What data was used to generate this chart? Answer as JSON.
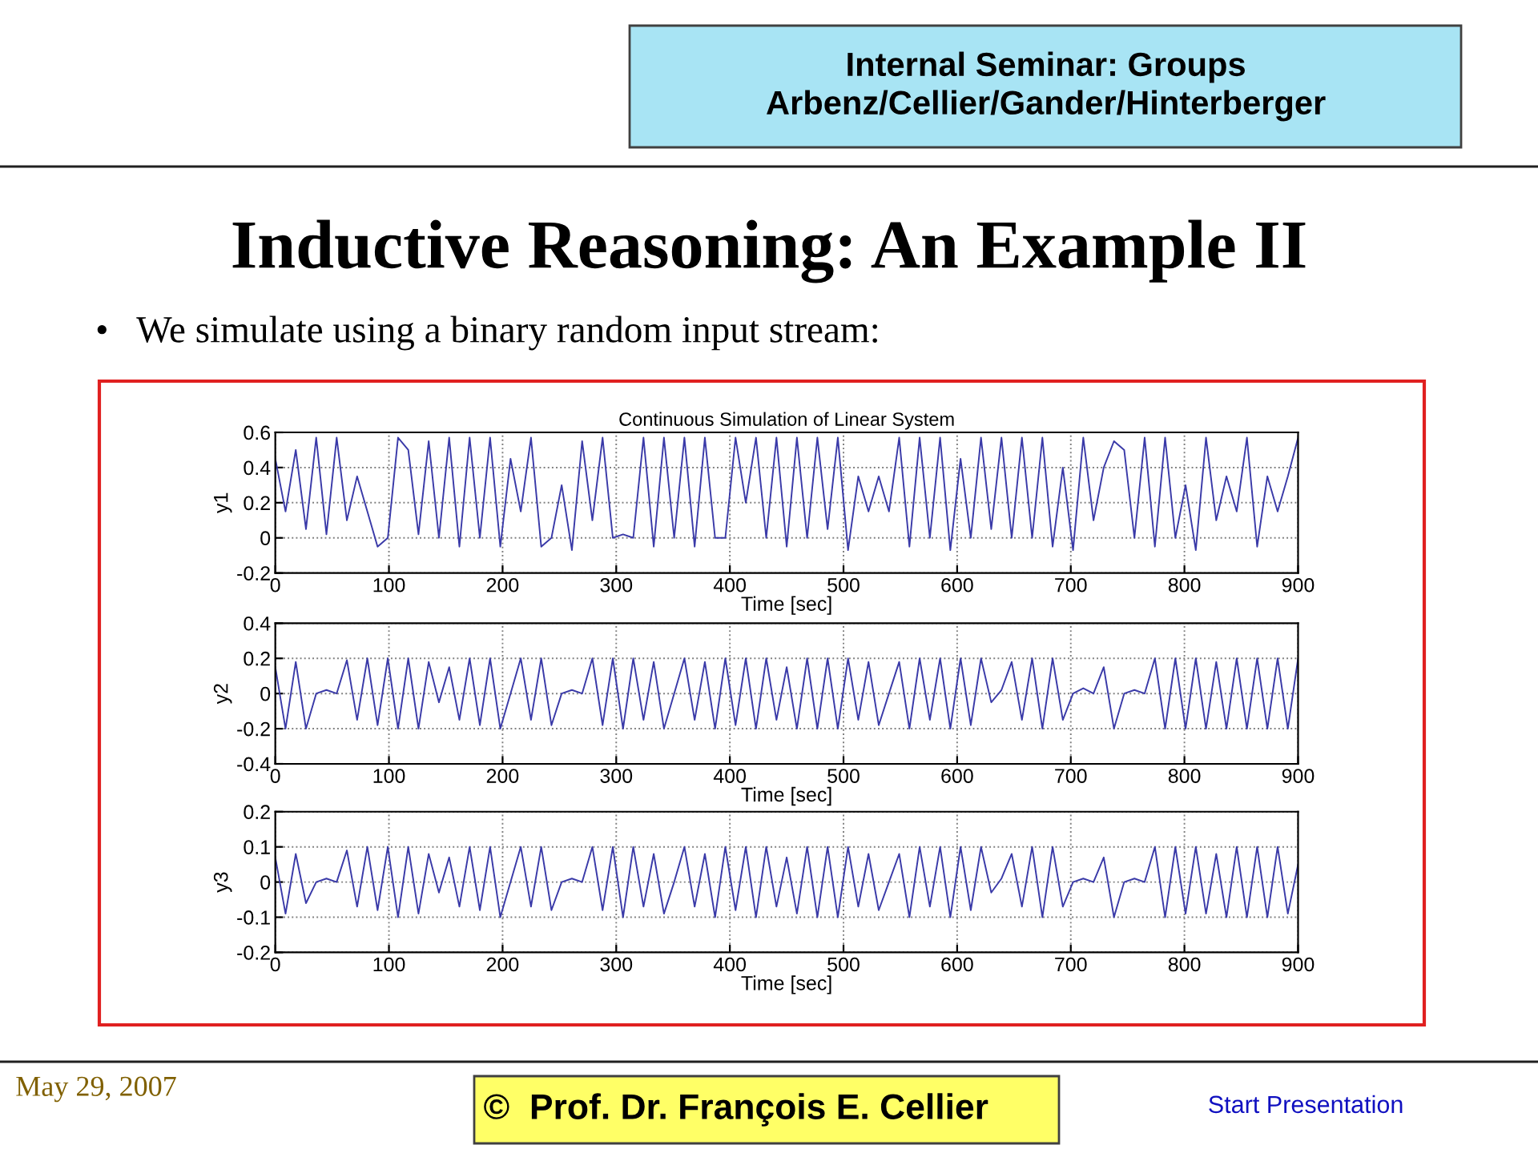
{
  "chart_data": [
    {
      "type": "line",
      "title": "Continuous Simulation of Linear System",
      "xlabel": "Time [sec]",
      "ylabel": "y1",
      "annotations": [
        "Internal Seminar: Groups\nArbenz/Cellier/Gander/Hinterberger",
        "Inductive Reasoning: An Example II",
        "•   We simulate using a binary random input stream:",
        "May 29, 2007",
        "©  Prof. Dr. François E. Cellier",
        "Start Presentation"
      ],
      "x": [
        0,
        9,
        18,
        27,
        36,
        45,
        54,
        63,
        72,
        81,
        90,
        99,
        108,
        117,
        126,
        135,
        144,
        153,
        162,
        171,
        180,
        189,
        198,
        207,
        216,
        225,
        234,
        243,
        252,
        261,
        270,
        279,
        288,
        297,
        306,
        315,
        324,
        333,
        342,
        351,
        360,
        369,
        378,
        387,
        396,
        405,
        414,
        423,
        432,
        441,
        450,
        459,
        468,
        477,
        486,
        495,
        504,
        513,
        522,
        531,
        540,
        549,
        558,
        567,
        576,
        585,
        594,
        603,
        612,
        621,
        630,
        639,
        648,
        657,
        666,
        675,
        684,
        693,
        702,
        711,
        720,
        729,
        738,
        747,
        756,
        765,
        774,
        783,
        792,
        801,
        810,
        819,
        828,
        837,
        846,
        855,
        864,
        873,
        882,
        891,
        900
      ],
      "series": [
        {
          "color": "#3a3aa8",
          "values": [
            0.45,
            0.15,
            0.5,
            0.05,
            0.57,
            0.02,
            0.57,
            0.1,
            0.35,
            0.15,
            -0.05,
            0.0,
            0.57,
            0.5,
            0.02,
            0.55,
            0.0,
            0.57,
            -0.05,
            0.57,
            0.0,
            0.57,
            -0.05,
            0.45,
            0.15,
            0.57,
            -0.05,
            0.0,
            0.3,
            -0.07,
            0.55,
            0.1,
            0.57,
            0.0,
            0.02,
            0.0,
            0.57,
            -0.05,
            0.57,
            0.0,
            0.57,
            -0.05,
            0.57,
            0.0,
            0.0,
            0.57,
            0.2,
            0.57,
            0.0,
            0.57,
            -0.05,
            0.57,
            0.0,
            0.57,
            0.05,
            0.57,
            -0.07,
            0.35,
            0.15,
            0.35,
            0.15,
            0.57,
            -0.05,
            0.57,
            0.0,
            0.57,
            -0.07,
            0.45,
            0.0,
            0.57,
            0.05,
            0.57,
            0.0,
            0.57,
            0.0,
            0.57,
            -0.05,
            0.4,
            -0.07,
            0.57,
            0.1,
            0.4,
            0.55,
            0.5,
            0.0,
            0.57,
            -0.05,
            0.57,
            0.0,
            0.3,
            -0.07,
            0.57,
            0.1,
            0.35,
            0.15,
            0.57,
            -0.05,
            0.35,
            0.15,
            0.35,
            0.57
          ]
        }
      ],
      "xlim": [
        0,
        900
      ],
      "ylim": [
        -0.2,
        0.6
      ],
      "xticks": [
        0,
        100,
        200,
        300,
        400,
        500,
        600,
        700,
        800,
        900
      ],
      "yticks": [
        -0.2,
        0,
        0.2,
        0.4,
        0.6
      ],
      "grid": true
    },
    {
      "type": "line",
      "xlabel": "Time [sec]",
      "ylabel": "y2",
      "x": [
        0,
        9,
        18,
        27,
        36,
        45,
        54,
        63,
        72,
        81,
        90,
        99,
        108,
        117,
        126,
        135,
        144,
        153,
        162,
        171,
        180,
        189,
        198,
        207,
        216,
        225,
        234,
        243,
        252,
        261,
        270,
        279,
        288,
        297,
        306,
        315,
        324,
        333,
        342,
        351,
        360,
        369,
        378,
        387,
        396,
        405,
        414,
        423,
        432,
        441,
        450,
        459,
        468,
        477,
        486,
        495,
        504,
        513,
        522,
        531,
        540,
        549,
        558,
        567,
        576,
        585,
        594,
        603,
        612,
        621,
        630,
        639,
        648,
        657,
        666,
        675,
        684,
        693,
        702,
        711,
        720,
        729,
        738,
        747,
        756,
        765,
        774,
        783,
        792,
        801,
        810,
        819,
        828,
        837,
        846,
        855,
        864,
        873,
        882,
        891,
        900
      ],
      "series": [
        {
          "color": "#3a3aa8",
          "values": [
            0.15,
            -0.2,
            0.18,
            -0.2,
            0.0,
            0.02,
            0.0,
            0.19,
            -0.15,
            0.2,
            -0.18,
            0.2,
            -0.2,
            0.2,
            -0.2,
            0.18,
            -0.05,
            0.15,
            -0.15,
            0.2,
            -0.18,
            0.2,
            -0.2,
            0.0,
            0.2,
            -0.15,
            0.2,
            -0.18,
            0.0,
            0.02,
            0.0,
            0.2,
            -0.18,
            0.2,
            -0.2,
            0.2,
            -0.15,
            0.18,
            -0.2,
            0.0,
            0.2,
            -0.15,
            0.18,
            -0.2,
            0.2,
            -0.18,
            0.2,
            -0.2,
            0.2,
            -0.15,
            0.15,
            -0.2,
            0.2,
            -0.2,
            0.2,
            -0.2,
            0.2,
            -0.15,
            0.18,
            -0.18,
            0.0,
            0.18,
            -0.2,
            0.2,
            -0.15,
            0.2,
            -0.2,
            0.2,
            -0.18,
            0.2,
            -0.05,
            0.02,
            0.18,
            -0.15,
            0.2,
            -0.2,
            0.2,
            -0.15,
            0.0,
            0.03,
            0.0,
            0.15,
            -0.2,
            0.0,
            0.02,
            0.0,
            0.2,
            -0.2,
            0.2,
            -0.2,
            0.2,
            -0.2,
            0.18,
            -0.2,
            0.2,
            -0.2,
            0.2,
            -0.2,
            0.2,
            -0.2,
            0.2
          ]
        }
      ],
      "xlim": [
        0,
        900
      ],
      "ylim": [
        -0.4,
        0.4
      ],
      "xticks": [
        0,
        100,
        200,
        300,
        400,
        500,
        600,
        700,
        800,
        900
      ],
      "yticks": [
        -0.4,
        -0.2,
        0,
        0.2,
        0.4
      ],
      "grid": true
    },
    {
      "type": "line",
      "xlabel": "Time [sec]",
      "ylabel": "y3",
      "x": [
        0,
        9,
        18,
        27,
        36,
        45,
        54,
        63,
        72,
        81,
        90,
        99,
        108,
        117,
        126,
        135,
        144,
        153,
        162,
        171,
        180,
        189,
        198,
        207,
        216,
        225,
        234,
        243,
        252,
        261,
        270,
        279,
        288,
        297,
        306,
        315,
        324,
        333,
        342,
        351,
        360,
        369,
        378,
        387,
        396,
        405,
        414,
        423,
        432,
        441,
        450,
        459,
        468,
        477,
        486,
        495,
        504,
        513,
        522,
        531,
        540,
        549,
        558,
        567,
        576,
        585,
        594,
        603,
        612,
        621,
        630,
        639,
        648,
        657,
        666,
        675,
        684,
        693,
        702,
        711,
        720,
        729,
        738,
        747,
        756,
        765,
        774,
        783,
        792,
        801,
        810,
        819,
        828,
        837,
        846,
        855,
        864,
        873,
        882,
        891,
        900
      ],
      "series": [
        {
          "color": "#3a3aa8",
          "values": [
            0.07,
            -0.09,
            0.08,
            -0.06,
            0.0,
            0.01,
            0.0,
            0.09,
            -0.07,
            0.1,
            -0.08,
            0.1,
            -0.1,
            0.1,
            -0.09,
            0.08,
            -0.03,
            0.07,
            -0.07,
            0.1,
            -0.08,
            0.1,
            -0.1,
            0.0,
            0.1,
            -0.07,
            0.1,
            -0.08,
            0.0,
            0.01,
            0.0,
            0.1,
            -0.08,
            0.1,
            -0.1,
            0.1,
            -0.07,
            0.08,
            -0.09,
            0.0,
            0.1,
            -0.07,
            0.08,
            -0.1,
            0.1,
            -0.08,
            0.1,
            -0.1,
            0.1,
            -0.07,
            0.07,
            -0.09,
            0.1,
            -0.1,
            0.1,
            -0.1,
            0.1,
            -0.07,
            0.08,
            -0.08,
            0.0,
            0.08,
            -0.1,
            0.1,
            -0.07,
            0.1,
            -0.1,
            0.1,
            -0.08,
            0.1,
            -0.03,
            0.01,
            0.08,
            -0.07,
            0.1,
            -0.1,
            0.1,
            -0.07,
            0.0,
            0.01,
            0.0,
            0.07,
            -0.1,
            0.0,
            0.01,
            0.0,
            0.1,
            -0.1,
            0.1,
            -0.09,
            0.1,
            -0.09,
            0.08,
            -0.1,
            0.1,
            -0.1,
            0.1,
            -0.1,
            0.1,
            -0.09,
            0.05
          ]
        }
      ],
      "xlim": [
        0,
        900
      ],
      "ylim": [
        -0.2,
        0.2
      ],
      "xticks": [
        0,
        100,
        200,
        300,
        400,
        500,
        600,
        700,
        800,
        900
      ],
      "yticks": [
        -0.2,
        -0.1,
        0,
        0.1,
        0.2
      ],
      "grid": true
    }
  ]
}
